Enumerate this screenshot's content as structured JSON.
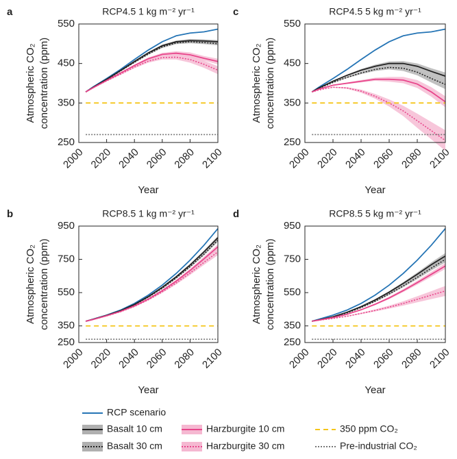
{
  "chart_data": [
    {
      "type": "line",
      "panel": "a",
      "title": "RCP4.5 1 kg m⁻² yr⁻¹",
      "x_label": "Year",
      "y_label": [
        "Atmospheric CO₂",
        "concentration (ppm)"
      ],
      "x": [
        2005,
        2010,
        2020,
        2030,
        2040,
        2050,
        2060,
        2070,
        2080,
        2090,
        2100
      ],
      "xlim": [
        2000,
        2100
      ],
      "xticks": [
        2000,
        2020,
        2040,
        2060,
        2080,
        2100
      ],
      "ylim": [
        250,
        550
      ],
      "yticks": [
        250,
        350,
        450,
        550
      ],
      "series": [
        {
          "name": "RCP scenario",
          "color": "#2474b5",
          "dash": "solid",
          "values": [
            378,
            390,
            412,
            435,
            460,
            484,
            505,
            520,
            527,
            530,
            537
          ]
        },
        {
          "name": "Basalt 10 cm",
          "color": "#222222",
          "dash": "solid",
          "band_color": "#b0b0b0",
          "values": [
            378,
            389,
            410,
            432,
            455,
            477,
            495,
            505,
            508,
            507,
            505
          ],
          "spread": [
            0,
            0,
            1,
            1,
            2,
            2,
            3,
            3,
            4,
            4,
            4
          ]
        },
        {
          "name": "Basalt 30 cm",
          "color": "#222222",
          "dash": "dotted",
          "band_color": "#b0b0b0",
          "values": [
            378,
            389,
            409,
            431,
            453,
            474,
            492,
            502,
            505,
            503,
            500
          ],
          "spread": [
            0,
            0,
            1,
            1,
            2,
            2,
            3,
            3,
            4,
            4,
            4
          ]
        },
        {
          "name": "Harzburgite 10 cm",
          "color": "#e8458b",
          "dash": "solid",
          "band_color": "#f5b8d1",
          "values": [
            378,
            388,
            407,
            426,
            445,
            462,
            473,
            476,
            472,
            463,
            455
          ],
          "spread": [
            0,
            0,
            1,
            1,
            2,
            3,
            4,
            5,
            6,
            6,
            7
          ]
        },
        {
          "name": "Harzburgite 30 cm",
          "color": "#e8458b",
          "dash": "dotted",
          "band_color": "#f5b8d1",
          "values": [
            378,
            388,
            406,
            423,
            441,
            456,
            465,
            466,
            460,
            448,
            433
          ],
          "spread": [
            0,
            0,
            1,
            2,
            3,
            4,
            5,
            6,
            8,
            9,
            10
          ]
        },
        {
          "name": "350 ppm CO₂",
          "color": "#f5c518",
          "dash": "dashed",
          "values": [
            350,
            350,
            350,
            350,
            350,
            350,
            350,
            350,
            350,
            350,
            350
          ]
        },
        {
          "name": "Pre-industrial CO₂",
          "color": "#777777",
          "dash": "dotted",
          "values": [
            270,
            270,
            270,
            270,
            270,
            270,
            270,
            270,
            270,
            270,
            270
          ]
        }
      ]
    },
    {
      "type": "line",
      "panel": "b",
      "title": "RCP8.5 1 kg m⁻² yr⁻¹",
      "x_label": "Year",
      "y_label": [
        "Atmospheric CO₂",
        "concentration (ppm)"
      ],
      "x": [
        2005,
        2010,
        2020,
        2030,
        2040,
        2050,
        2060,
        2070,
        2080,
        2090,
        2100
      ],
      "xlim": [
        2000,
        2100
      ],
      "xticks": [
        2000,
        2020,
        2040,
        2060,
        2080,
        2100
      ],
      "ylim": [
        250,
        950
      ],
      "yticks": [
        250,
        350,
        550,
        750,
        950
      ],
      "series": [
        {
          "name": "RCP scenario",
          "color": "#2474b5",
          "dash": "solid",
          "values": [
            378,
            390,
            415,
            445,
            485,
            535,
            595,
            665,
            745,
            835,
            935
          ]
        },
        {
          "name": "Basalt 10 cm",
          "color": "#222222",
          "dash": "solid",
          "band_color": "#b0b0b0",
          "values": [
            378,
            389,
            413,
            441,
            479,
            526,
            582,
            645,
            716,
            795,
            880
          ],
          "spread": [
            0,
            0,
            1,
            1,
            2,
            3,
            4,
            5,
            6,
            8,
            10
          ]
        },
        {
          "name": "Basalt 30 cm",
          "color": "#222222",
          "dash": "dotted",
          "band_color": "#b0b0b0",
          "values": [
            378,
            389,
            412,
            440,
            477,
            523,
            576,
            638,
            706,
            781,
            865
          ],
          "spread": [
            0,
            0,
            1,
            1,
            2,
            3,
            4,
            5,
            6,
            8,
            10
          ]
        },
        {
          "name": "Harzburgite 10 cm",
          "color": "#e8458b",
          "dash": "solid",
          "band_color": "#f5b8d1",
          "values": [
            378,
            388,
            411,
            437,
            470,
            512,
            562,
            619,
            683,
            753,
            825
          ],
          "spread": [
            0,
            0,
            1,
            2,
            3,
            4,
            6,
            8,
            10,
            13,
            16
          ]
        },
        {
          "name": "Harzburgite 30 cm",
          "color": "#e8458b",
          "dash": "dotted",
          "band_color": "#f5b8d1",
          "values": [
            378,
            388,
            410,
            435,
            467,
            507,
            555,
            608,
            668,
            732,
            795
          ],
          "spread": [
            0,
            0,
            1,
            2,
            3,
            5,
            7,
            9,
            12,
            15,
            20
          ]
        },
        {
          "name": "350 ppm CO₂",
          "color": "#f5c518",
          "dash": "dashed",
          "values": [
            350,
            350,
            350,
            350,
            350,
            350,
            350,
            350,
            350,
            350,
            350
          ]
        },
        {
          "name": "Pre-industrial CO₂",
          "color": "#777777",
          "dash": "dotted",
          "values": [
            270,
            270,
            270,
            270,
            270,
            270,
            270,
            270,
            270,
            270,
            270
          ]
        }
      ]
    },
    {
      "type": "line",
      "panel": "c",
      "title": "RCP4.5 5 kg m⁻² yr⁻¹",
      "x_label": "Year",
      "y_label": [
        "Atmospheric CO₂",
        "concentration (ppm)"
      ],
      "x": [
        2005,
        2010,
        2020,
        2030,
        2040,
        2050,
        2060,
        2070,
        2080,
        2090,
        2100
      ],
      "xlim": [
        2000,
        2100
      ],
      "xticks": [
        2000,
        2020,
        2040,
        2060,
        2080,
        2100
      ],
      "ylim": [
        250,
        550
      ],
      "yticks": [
        250,
        350,
        450,
        550
      ],
      "series": [
        {
          "name": "RCP scenario",
          "color": "#2474b5",
          "dash": "solid",
          "values": [
            378,
            390,
            412,
            435,
            460,
            484,
            505,
            520,
            527,
            530,
            537
          ]
        },
        {
          "name": "Basalt 10 cm",
          "color": "#222222",
          "dash": "solid",
          "band_color": "#b0b0b0",
          "values": [
            378,
            388,
            405,
            420,
            433,
            443,
            450,
            450,
            443,
            430,
            418
          ],
          "spread": [
            0,
            0,
            1,
            2,
            3,
            4,
            5,
            6,
            7,
            8,
            9
          ]
        },
        {
          "name": "Basalt 30 cm",
          "color": "#222222",
          "dash": "dotted",
          "band_color": "#b0b0b0",
          "values": [
            378,
            387,
            402,
            415,
            426,
            435,
            440,
            438,
            428,
            412,
            397
          ],
          "spread": [
            0,
            0,
            1,
            2,
            3,
            4,
            5,
            7,
            8,
            10,
            12
          ]
        },
        {
          "name": "Harzburgite 10 cm",
          "color": "#e8458b",
          "dash": "solid",
          "band_color": "#f5b8d1",
          "values": [
            378,
            385,
            395,
            400,
            405,
            410,
            410,
            408,
            398,
            378,
            353
          ],
          "spread": [
            0,
            0,
            1,
            2,
            3,
            4,
            6,
            8,
            10,
            12,
            14
          ]
        },
        {
          "name": "Harzburgite 30 cm",
          "color": "#e8458b",
          "dash": "dotted",
          "band_color": "#f5b8d1",
          "values": [
            378,
            383,
            390,
            388,
            380,
            367,
            350,
            330,
            305,
            280,
            255
          ],
          "spread": [
            0,
            0,
            1,
            2,
            4,
            6,
            9,
            13,
            18,
            22,
            26
          ]
        },
        {
          "name": "350 ppm CO₂",
          "color": "#f5c518",
          "dash": "dashed",
          "values": [
            350,
            350,
            350,
            350,
            350,
            350,
            350,
            350,
            350,
            350,
            350
          ]
        },
        {
          "name": "Pre-industrial CO₂",
          "color": "#777777",
          "dash": "dotted",
          "values": [
            270,
            270,
            270,
            270,
            270,
            270,
            270,
            270,
            270,
            270,
            270
          ]
        }
      ]
    },
    {
      "type": "line",
      "panel": "d",
      "title": "RCP8.5 5 kg m⁻² yr⁻¹",
      "x_label": "Year",
      "y_label": [
        "Atmospheric CO₂",
        "concentration (ppm)"
      ],
      "x": [
        2005,
        2010,
        2020,
        2030,
        2040,
        2050,
        2060,
        2070,
        2080,
        2090,
        2100
      ],
      "xlim": [
        2000,
        2100
      ],
      "xticks": [
        2000,
        2020,
        2040,
        2060,
        2080,
        2100
      ],
      "ylim": [
        250,
        950
      ],
      "yticks": [
        250,
        350,
        550,
        750,
        950
      ],
      "series": [
        {
          "name": "RCP scenario",
          "color": "#2474b5",
          "dash": "solid",
          "values": [
            378,
            390,
            415,
            445,
            485,
            535,
            595,
            665,
            745,
            835,
            935
          ]
        },
        {
          "name": "Basalt 10 cm",
          "color": "#222222",
          "dash": "solid",
          "band_color": "#b0b0b0",
          "values": [
            378,
            386,
            405,
            432,
            466,
            506,
            553,
            605,
            660,
            718,
            770
          ],
          "spread": [
            0,
            0,
            1,
            2,
            3,
            4,
            6,
            8,
            11,
            14,
            18
          ]
        },
        {
          "name": "Basalt 30 cm",
          "color": "#222222",
          "dash": "dotted",
          "band_color": "#b0b0b0",
          "values": [
            378,
            386,
            403,
            428,
            460,
            498,
            542,
            590,
            642,
            697,
            750
          ],
          "spread": [
            0,
            0,
            1,
            2,
            3,
            4,
            6,
            8,
            11,
            14,
            18
          ]
        },
        {
          "name": "Harzburgite 10 cm",
          "color": "#e8458b",
          "dash": "solid",
          "band_color": "#f5b8d1",
          "values": [
            378,
            385,
            400,
            420,
            447,
            480,
            518,
            562,
            610,
            660,
            710
          ],
          "spread": [
            0,
            0,
            1,
            2,
            3,
            5,
            7,
            9,
            12,
            15,
            18
          ]
        },
        {
          "name": "Harzburgite 30 cm",
          "color": "#e8458b",
          "dash": "dotted",
          "band_color": "#f5b8d1",
          "values": [
            378,
            384,
            395,
            408,
            425,
            443,
            463,
            485,
            510,
            535,
            560
          ],
          "spread": [
            0,
            0,
            1,
            2,
            4,
            6,
            9,
            13,
            18,
            24,
            30
          ]
        },
        {
          "name": "350 ppm CO₂",
          "color": "#f5c518",
          "dash": "dashed",
          "values": [
            350,
            350,
            350,
            350,
            350,
            350,
            350,
            350,
            350,
            350,
            350
          ]
        },
        {
          "name": "Pre-industrial CO₂",
          "color": "#777777",
          "dash": "dotted",
          "values": [
            270,
            270,
            270,
            270,
            270,
            270,
            270,
            270,
            270,
            270,
            270
          ]
        }
      ]
    }
  ],
  "legend_position": "bottom"
}
